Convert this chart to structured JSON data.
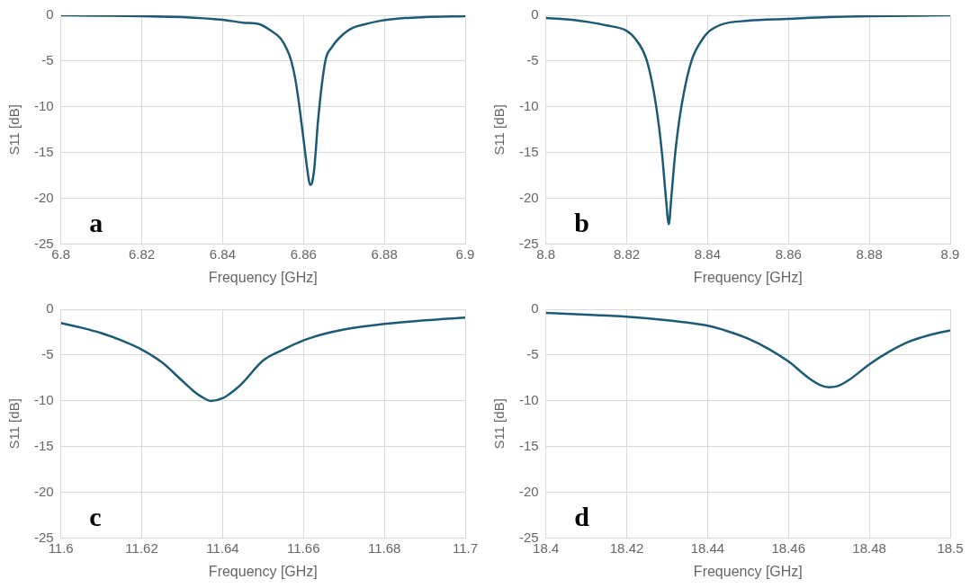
{
  "chart_data": [
    {
      "type": "line",
      "xlabel": "Frequency [GHz]",
      "ylabel": "S11 [dB]",
      "annotations": [
        "a"
      ],
      "grid": true,
      "marker": "none",
      "line_style": "solid",
      "xlim": [
        6.8,
        6.9
      ],
      "xticks": [
        6.8,
        6.82,
        6.84,
        6.86,
        6.88,
        6.9
      ],
      "ylim": [
        -25,
        0
      ],
      "yticks": [
        -25,
        -20,
        -15,
        -10,
        -5,
        0
      ],
      "series": [
        {
          "color": "#1d5a75",
          "x": [
            6.8,
            6.81,
            6.82,
            6.83,
            6.84,
            6.845,
            6.8493,
            6.852,
            6.8543,
            6.856,
            6.857,
            6.858,
            6.859,
            6.86,
            6.861,
            6.8616,
            6.862,
            6.8626,
            6.863,
            6.8635,
            6.8654,
            6.867,
            6.87,
            6.872,
            6.875,
            6.879,
            6.885,
            6.89,
            6.9
          ],
          "values": [
            0,
            -0.05,
            -0.1,
            -0.2,
            -0.5,
            -0.8,
            -1,
            -1.7,
            -2.5,
            -3.8,
            -5,
            -7,
            -10,
            -13.5,
            -17,
            -18.5,
            -18.4,
            -17,
            -15,
            -12,
            -5,
            -3.5,
            -2,
            -1.4,
            -1,
            -0.6,
            -0.3,
            -0.2,
            -0.1
          ]
        }
      ]
    },
    {
      "type": "line",
      "xlabel": "Frequency [GHz]",
      "ylabel": "S11 [dB]",
      "annotations": [
        "b"
      ],
      "grid": true,
      "marker": "none",
      "line_style": "solid",
      "xlim": [
        8.8,
        8.9
      ],
      "xticks": [
        8.8,
        8.82,
        8.84,
        8.86,
        8.88,
        8.9
      ],
      "ylim": [
        -25,
        0
      ],
      "yticks": [
        -25,
        -20,
        -15,
        -10,
        -5,
        0
      ],
      "series": [
        {
          "color": "#1d5a75",
          "x": [
            8.8,
            8.805,
            8.81,
            8.815,
            8.82,
            8.822,
            8.825,
            8.8273,
            8.8287,
            8.8297,
            8.8304,
            8.831,
            8.832,
            8.8335,
            8.836,
            8.8389,
            8.84,
            8.8435,
            8.85,
            8.86,
            8.87,
            8.88,
            8.89,
            8.9
          ],
          "values": [
            -0.3,
            -0.45,
            -0.7,
            -1.1,
            -1.7,
            -2.5,
            -5,
            -10,
            -15,
            -20,
            -22.8,
            -20,
            -15,
            -10,
            -5,
            -2.5,
            -1.9,
            -1,
            -0.6,
            -0.4,
            -0.2,
            -0.1,
            -0.05,
            0
          ]
        }
      ]
    },
    {
      "type": "line",
      "xlabel": "Frequency [GHz]",
      "ylabel": "S11 [dB]",
      "annotations": [
        "c"
      ],
      "grid": true,
      "marker": "none",
      "line_style": "solid",
      "xlim": [
        11.6,
        11.7
      ],
      "xticks": [
        11.6,
        11.62,
        11.64,
        11.66,
        11.68,
        11.7
      ],
      "ylim": [
        -25,
        0
      ],
      "yticks": [
        -25,
        -20,
        -15,
        -10,
        -5,
        0
      ],
      "series": [
        {
          "color": "#1d5a75",
          "x": [
            11.6,
            11.605,
            11.61,
            11.615,
            11.62,
            11.625,
            11.63,
            11.633,
            11.635,
            11.637,
            11.64,
            11.643,
            11.645,
            11.65,
            11.655,
            11.66,
            11.665,
            11.67,
            11.68,
            11.69,
            11.7
          ],
          "values": [
            -1.5,
            -2,
            -2.6,
            -3.4,
            -4.4,
            -5.8,
            -7.8,
            -9,
            -9.6,
            -10,
            -9.7,
            -8.8,
            -8,
            -5.6,
            -4.4,
            -3.4,
            -2.7,
            -2.2,
            -1.6,
            -1.2,
            -0.9
          ]
        }
      ]
    },
    {
      "type": "line",
      "xlabel": "Frequency [GHz]",
      "ylabel": "S11 [dB]",
      "annotations": [
        "d"
      ],
      "grid": true,
      "marker": "none",
      "line_style": "solid",
      "xlim": [
        18.4,
        18.5
      ],
      "xticks": [
        18.4,
        18.42,
        18.44,
        18.46,
        18.48,
        18.5
      ],
      "ylim": [
        -25,
        0
      ],
      "yticks": [
        -25,
        -20,
        -15,
        -10,
        -5,
        0
      ],
      "series": [
        {
          "color": "#1d5a75",
          "x": [
            18.4,
            18.41,
            18.42,
            18.43,
            18.44,
            18.445,
            18.45,
            18.455,
            18.46,
            18.465,
            18.468,
            18.47,
            18.472,
            18.475,
            18.48,
            18.485,
            18.49,
            18.495,
            18.5
          ],
          "values": [
            -0.4,
            -0.6,
            -0.8,
            -1.2,
            -1.8,
            -2.4,
            -3.2,
            -4.3,
            -5.7,
            -7.5,
            -8.3,
            -8.5,
            -8.4,
            -7.7,
            -6,
            -4.6,
            -3.5,
            -2.8,
            -2.3
          ]
        }
      ]
    }
  ]
}
